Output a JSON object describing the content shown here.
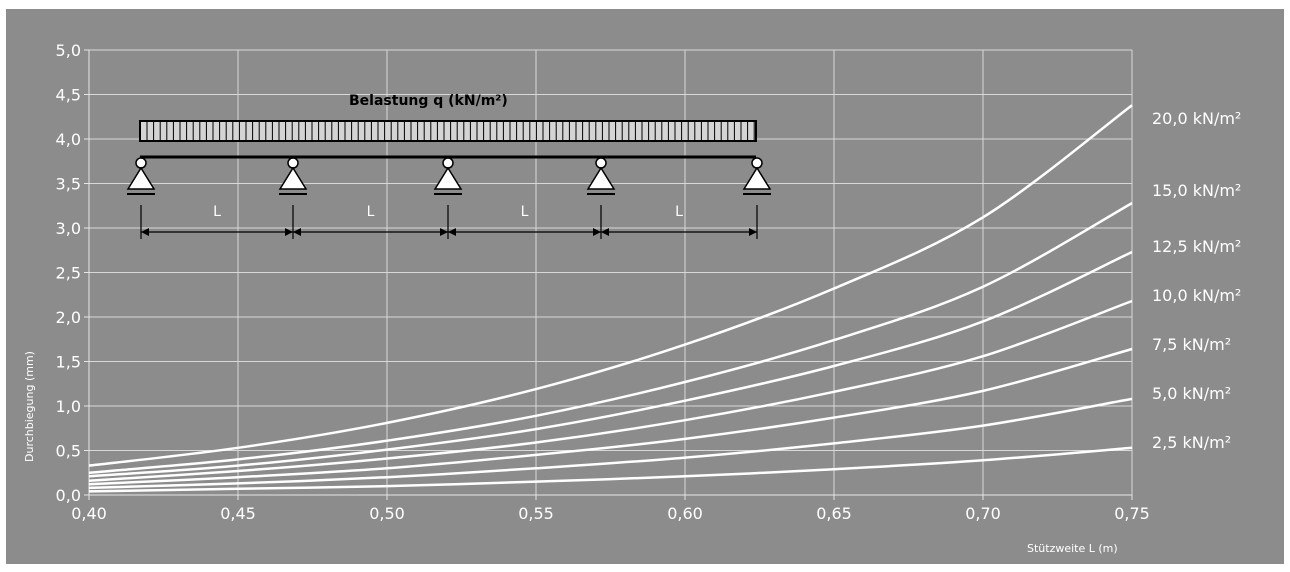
{
  "chart_data": {
    "type": "line",
    "xlabel": "Stützweite L (m)",
    "ylabel": "Durchbiegung (mm)",
    "xlim": [
      0.4,
      0.75
    ],
    "ylim": [
      0.0,
      5.0
    ],
    "x_ticks": [
      "0,40",
      "0,45",
      "0,50",
      "0,55",
      "0,60",
      "0,65",
      "0,70",
      "0,75"
    ],
    "y_ticks": [
      "0,0",
      "0,5",
      "1,0",
      "1,5",
      "2,0",
      "2,5",
      "3,0",
      "3,5",
      "4,0",
      "4,5",
      "5,0"
    ],
    "grid": true,
    "x": [
      0.4,
      0.45,
      0.5,
      0.55,
      0.6,
      0.65,
      0.7,
      0.75
    ],
    "series": [
      {
        "name": "20,0 kN/m²",
        "values": [
          0.33,
          0.53,
          0.81,
          1.19,
          1.69,
          2.32,
          3.12,
          4.38
        ]
      },
      {
        "name": "15,0 kN/m²",
        "values": [
          0.25,
          0.4,
          0.61,
          0.89,
          1.27,
          1.74,
          2.34,
          3.28
        ]
      },
      {
        "name": "12,5 kN/m²",
        "values": [
          0.21,
          0.33,
          0.51,
          0.74,
          1.06,
          1.45,
          1.95,
          2.73
        ]
      },
      {
        "name": "10,0 kN/m²",
        "values": [
          0.16,
          0.27,
          0.41,
          0.59,
          0.84,
          1.16,
          1.56,
          2.18
        ]
      },
      {
        "name": "7,5 kN/m²",
        "values": [
          0.12,
          0.2,
          0.3,
          0.45,
          0.63,
          0.87,
          1.17,
          1.64
        ]
      },
      {
        "name": "5,0 kN/m²",
        "values": [
          0.08,
          0.13,
          0.2,
          0.3,
          0.42,
          0.58,
          0.78,
          1.08
        ]
      },
      {
        "name": "2,5 kN/m²",
        "values": [
          0.04,
          0.07,
          0.1,
          0.15,
          0.21,
          0.29,
          0.39,
          0.53
        ]
      }
    ]
  },
  "diagram": {
    "title": "Belastung q (kN/m²)",
    "span_label": "L"
  },
  "colors": {
    "background": "#8c8c8c",
    "grid": "#d8d8d8",
    "curve": "#ffffff",
    "axis": "#e6e6e6"
  }
}
